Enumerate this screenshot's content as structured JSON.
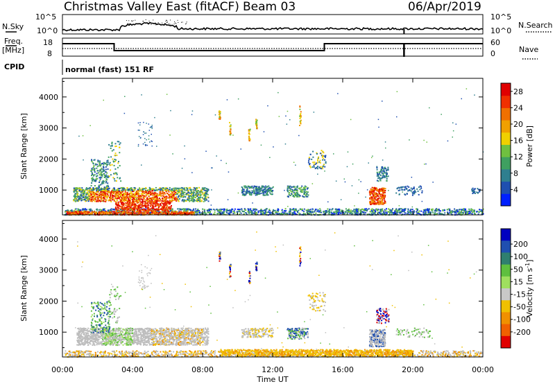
{
  "header": {
    "station": "Christmas Valley East (fitACF)",
    "beam": "Beam 03",
    "date": "06/Apr/2019"
  },
  "mini_panels": {
    "nsky_label": "N.Sky",
    "nsearch_label": "N.Search",
    "nsky_ticks": [
      "10^5",
      "10^0"
    ],
    "nsearch_ticks": [
      "10^5",
      "10^0"
    ],
    "freq_label_1": "Freq.",
    "freq_label_2": "[MHz]",
    "freq_ticks": [
      "18",
      "8"
    ],
    "nave_label": "Nave",
    "nave_ticks": [
      "60",
      "0"
    ],
    "cpid_label": "CPID",
    "cpid_text": "normal (fast) 151 RF"
  },
  "colors": {
    "power_scale": [
      "#0020ff",
      "#1f4fb0",
      "#2f7f8f",
      "#3fa060",
      "#6fc040",
      "#f0d000",
      "#f0a000",
      "#f07000",
      "#f03000",
      "#e00000"
    ],
    "velocity_scale": [
      "#0000c0",
      "#1f4fb0",
      "#2f7f6f",
      "#5fbf3f",
      "#9fdf5f",
      "#c8c8c8",
      "#f0c000",
      "#f09000",
      "#f06000",
      "#e00000"
    ],
    "gray_scatter": "#bdbdbd"
  },
  "chart_data": [
    {
      "type": "heatmap",
      "name": "power-panel",
      "ylabel": "Slant Range [km]",
      "xlabel": "",
      "x_ticks": [
        "00:00",
        "04:00",
        "08:00",
        "12:00",
        "16:00",
        "20:00",
        "00:00"
      ],
      "y_ticks": [
        "1000",
        "2000",
        "3000",
        "4000"
      ],
      "ylim": [
        200,
        4600
      ],
      "xlim_hours": [
        0,
        24
      ],
      "colorbar_label": "Power [dB]",
      "colorbar_ticks": [
        "4",
        "8",
        "12",
        "16",
        "20",
        "24",
        "28"
      ],
      "colorbar_range": [
        0,
        30
      ]
    },
    {
      "type": "heatmap",
      "name": "velocity-panel",
      "ylabel": "Slant Range [km]",
      "xlabel": "Time UT",
      "x_ticks": [
        "00:00",
        "04:00",
        "08:00",
        "12:00",
        "16:00",
        "20:00",
        "00:00"
      ],
      "y_ticks": [
        "1000",
        "2000",
        "3000",
        "4000"
      ],
      "ylim": [
        200,
        4600
      ],
      "xlim_hours": [
        0,
        24
      ],
      "colorbar_label": "Velocity [m s^-1]",
      "colorbar_ticks": [
        "200",
        "100",
        "50",
        "15",
        "-15",
        "-50",
        "-100",
        "-200"
      ],
      "colorbar_range": [
        -250,
        250
      ]
    }
  ]
}
